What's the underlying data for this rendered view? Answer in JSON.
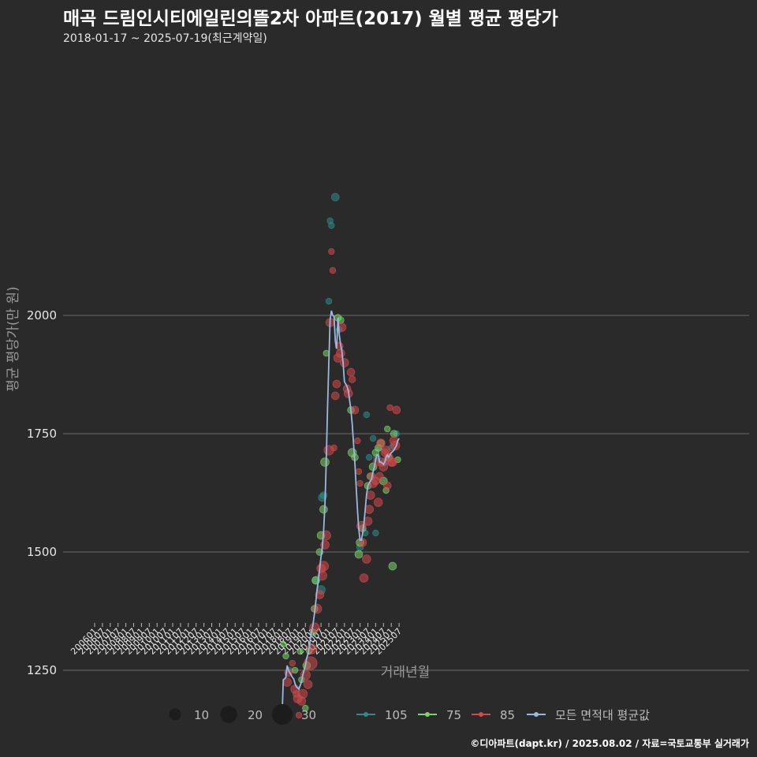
{
  "title": "매곡 드림인시티에일린의뜰2차 아파트(2017) 월별 평균 평당가",
  "subtitle": "2018-01-17 ~ 2025-07-19(최근계약일)",
  "caption": "©디아파트(dapt.kr) / 2025.08.02 / 자료=국토교통부 실거래가",
  "colors": {
    "background": "#2a2a2b",
    "grid": "#6b6b6b",
    "s105": "#2f8a8a",
    "s75": "#7dd46a",
    "s85": "#d4494c",
    "avg": "#9ab8e0"
  },
  "chart_data": {
    "type": "scatter",
    "xlabel": "거래년월",
    "ylabel": "평균 평당가(만 원)",
    "ylim": [
      1100,
      2300
    ],
    "yticks": [
      1250,
      1500,
      1750,
      2000
    ],
    "xticks": [
      "200601",
      "200607",
      "200701",
      "200707",
      "200801",
      "200807",
      "200901",
      "200907",
      "201001",
      "201007",
      "201101",
      "201107",
      "201201",
      "201207",
      "201301",
      "201307",
      "201401",
      "201407",
      "201501",
      "201507",
      "201601",
      "201607",
      "201701",
      "201707",
      "201801",
      "201807",
      "201901",
      "201907",
      "202001",
      "202007",
      "202101",
      "202107",
      "202201",
      "202207",
      "202301",
      "202307",
      "202401",
      "202407",
      "202501",
      "202507"
    ],
    "size_legend": {
      "values": [
        10,
        20,
        30
      ],
      "labels": [
        "10",
        "20",
        "30"
      ]
    },
    "series_legend": [
      "105",
      "75",
      "85",
      "모든 면적대 평균값"
    ],
    "series": [
      {
        "name": "105",
        "points": [
          [
            "2018-07",
            1250,
            3
          ],
          [
            "2020-03",
            1440,
            4
          ],
          [
            "2020-07",
            1420,
            6
          ],
          [
            "2020-08",
            1615,
            5
          ],
          [
            "2020-09",
            1620,
            4
          ],
          [
            "2021-01",
            2030,
            3
          ],
          [
            "2021-02",
            2200,
            3
          ],
          [
            "2021-03",
            2190,
            3
          ],
          [
            "2021-06",
            2250,
            5
          ],
          [
            "2021-09",
            1970,
            3
          ],
          [
            "2023-01",
            1510,
            4
          ],
          [
            "2023-05",
            1540,
            3
          ],
          [
            "2023-06",
            1790,
            3
          ],
          [
            "2023-08",
            1700,
            3
          ],
          [
            "2023-11",
            1740,
            3
          ],
          [
            "2024-01",
            1540,
            3
          ],
          [
            "2024-02",
            1700,
            4
          ],
          [
            "2024-04",
            1720,
            3
          ],
          [
            "2024-08",
            1690,
            4
          ],
          [
            "2025-01",
            1720,
            3
          ],
          [
            "2025-05",
            1750,
            3
          ]
        ]
      },
      {
        "name": "75",
        "points": [
          [
            "2018-02",
            1305,
            3
          ],
          [
            "2018-04",
            1280,
            3
          ],
          [
            "2018-11",
            1250,
            3
          ],
          [
            "2019-03",
            1290,
            3
          ],
          [
            "2019-04",
            1230,
            3
          ],
          [
            "2019-07",
            1170,
            3
          ],
          [
            "2019-08",
            1260,
            5
          ],
          [
            "2019-10",
            1290,
            3
          ],
          [
            "2020-01",
            1330,
            4
          ],
          [
            "2020-02",
            1380,
            4
          ],
          [
            "2020-03",
            1440,
            5
          ],
          [
            "2020-06",
            1500,
            4
          ],
          [
            "2020-07",
            1535,
            5
          ],
          [
            "2020-09",
            1590,
            5
          ],
          [
            "2020-10",
            1690,
            6
          ],
          [
            "2020-11",
            1920,
            3
          ],
          [
            "2021-08",
            1995,
            4
          ],
          [
            "2021-10",
            1990,
            4
          ],
          [
            "2022-06",
            1800,
            4
          ],
          [
            "2022-07",
            1710,
            6
          ],
          [
            "2022-09",
            1700,
            4
          ],
          [
            "2022-12",
            1495,
            5
          ],
          [
            "2023-01",
            1520,
            5
          ],
          [
            "2023-03",
            1550,
            4
          ],
          [
            "2023-07",
            1640,
            4
          ],
          [
            "2023-09",
            1660,
            4
          ],
          [
            "2023-11",
            1680,
            5
          ],
          [
            "2024-01",
            1710,
            4
          ],
          [
            "2024-03",
            1720,
            4
          ],
          [
            "2024-05",
            1730,
            4
          ],
          [
            "2024-07",
            1650,
            5
          ],
          [
            "2024-09",
            1630,
            3
          ],
          [
            "2024-10",
            1760,
            3
          ],
          [
            "2024-11",
            1700,
            4
          ],
          [
            "2025-02",
            1470,
            5
          ],
          [
            "2025-03",
            1750,
            4
          ],
          [
            "2025-06",
            1695,
            3
          ]
        ]
      },
      {
        "name": "85",
        "points": [
          [
            "2018-01",
            1150,
            3
          ],
          [
            "2018-05",
            1225,
            6
          ],
          [
            "2018-06",
            1245,
            5
          ],
          [
            "2018-09",
            1265,
            3
          ],
          [
            "2018-11",
            1210,
            6
          ],
          [
            "2018-12",
            1200,
            4
          ],
          [
            "2019-01",
            1190,
            6
          ],
          [
            "2019-02",
            1155,
            3
          ],
          [
            "2019-04",
            1185,
            6
          ],
          [
            "2019-05",
            1200,
            7
          ],
          [
            "2019-07",
            1240,
            8
          ],
          [
            "2019-09",
            1220,
            6
          ],
          [
            "2019-11",
            1265,
            14
          ],
          [
            "2019-12",
            1295,
            8
          ],
          [
            "2020-02",
            1340,
            8
          ],
          [
            "2020-04",
            1380,
            7
          ],
          [
            "2020-06",
            1410,
            6
          ],
          [
            "2020-07",
            1465,
            6
          ],
          [
            "2020-08",
            1450,
            7
          ],
          [
            "2020-09",
            1470,
            8
          ],
          [
            "2020-10",
            1515,
            6
          ],
          [
            "2020-11",
            1535,
            7
          ],
          [
            "2021-01",
            1715,
            8
          ],
          [
            "2021-02",
            1985,
            6
          ],
          [
            "2021-03",
            2135,
            3
          ],
          [
            "2021-04",
            2095,
            3
          ],
          [
            "2021-05",
            1720,
            3
          ],
          [
            "2021-06",
            1830,
            5
          ],
          [
            "2021-07",
            1855,
            5
          ],
          [
            "2021-08",
            1910,
            6
          ],
          [
            "2021-09",
            1935,
            5
          ],
          [
            "2021-10",
            1920,
            6
          ],
          [
            "2021-11",
            1975,
            6
          ],
          [
            "2022-01",
            1900,
            6
          ],
          [
            "2022-03",
            1845,
            5
          ],
          [
            "2022-04",
            1835,
            6
          ],
          [
            "2022-06",
            1880,
            5
          ],
          [
            "2022-07",
            1865,
            4
          ],
          [
            "2022-09",
            1800,
            5
          ],
          [
            "2022-11",
            1735,
            3
          ],
          [
            "2022-12",
            1670,
            3
          ],
          [
            "2023-01",
            1645,
            3
          ],
          [
            "2023-02",
            1555,
            7
          ],
          [
            "2023-03",
            1520,
            5
          ],
          [
            "2023-04",
            1445,
            6
          ],
          [
            "2023-06",
            1485,
            6
          ],
          [
            "2023-07",
            1565,
            6
          ],
          [
            "2023-08",
            1590,
            6
          ],
          [
            "2023-09",
            1620,
            6
          ],
          [
            "2023-10",
            1660,
            5
          ],
          [
            "2023-11",
            1645,
            6
          ],
          [
            "2024-01",
            1650,
            5
          ],
          [
            "2024-02",
            1690,
            5
          ],
          [
            "2024-03",
            1605,
            6
          ],
          [
            "2024-04",
            1660,
            5
          ],
          [
            "2024-05",
            1730,
            6
          ],
          [
            "2024-06",
            1690,
            6
          ],
          [
            "2024-07",
            1680,
            6
          ],
          [
            "2024-08",
            1710,
            5
          ],
          [
            "2024-09",
            1715,
            6
          ],
          [
            "2024-10",
            1640,
            5
          ],
          [
            "2024-11",
            1700,
            6
          ],
          [
            "2024-12",
            1805,
            3
          ],
          [
            "2025-01",
            1690,
            6
          ],
          [
            "2025-02",
            1690,
            6
          ],
          [
            "2025-03",
            1735,
            6
          ],
          [
            "2025-04",
            1725,
            7
          ],
          [
            "2025-05",
            1800,
            5
          ]
        ]
      },
      {
        "name": "모든 면적대 평균값",
        "line": [
          [
            "2018-01",
            1150
          ],
          [
            "2018-02",
            1230
          ],
          [
            "2018-03",
            1232
          ],
          [
            "2018-04",
            1235
          ],
          [
            "2018-05",
            1260
          ],
          [
            "2018-06",
            1250
          ],
          [
            "2018-07",
            1245
          ],
          [
            "2018-08",
            1240
          ],
          [
            "2018-09",
            1235
          ],
          [
            "2018-10",
            1232
          ],
          [
            "2018-11",
            1222
          ],
          [
            "2018-12",
            1215
          ],
          [
            "2019-01",
            1213
          ],
          [
            "2019-02",
            1210
          ],
          [
            "2019-03",
            1218
          ],
          [
            "2019-04",
            1225
          ],
          [
            "2019-05",
            1240
          ],
          [
            "2019-06",
            1250
          ],
          [
            "2019-07",
            1260
          ],
          [
            "2019-08",
            1275
          ],
          [
            "2019-09",
            1285
          ],
          [
            "2019-10",
            1300
          ],
          [
            "2019-11",
            1320
          ],
          [
            "2019-12",
            1335
          ],
          [
            "2020-01",
            1350
          ],
          [
            "2020-02",
            1370
          ],
          [
            "2020-03",
            1395
          ],
          [
            "2020-04",
            1420
          ],
          [
            "2020-05",
            1440
          ],
          [
            "2020-06",
            1465
          ],
          [
            "2020-07",
            1490
          ],
          [
            "2020-08",
            1510
          ],
          [
            "2020-09",
            1545
          ],
          [
            "2020-10",
            1600
          ],
          [
            "2020-11",
            1690
          ],
          [
            "2020-12",
            1800
          ],
          [
            "2021-01",
            1900
          ],
          [
            "2021-02",
            1990
          ],
          [
            "2021-03",
            2010
          ],
          [
            "2021-04",
            2000
          ],
          [
            "2021-05",
            1998
          ],
          [
            "2021-06",
            1945
          ],
          [
            "2021-07",
            1930
          ],
          [
            "2021-08",
            1995
          ],
          [
            "2021-09",
            1960
          ],
          [
            "2021-10",
            1940
          ],
          [
            "2021-11",
            1925
          ],
          [
            "2021-12",
            1900
          ],
          [
            "2022-01",
            1860
          ],
          [
            "2022-02",
            1855
          ],
          [
            "2022-03",
            1850
          ],
          [
            "2022-04",
            1840
          ],
          [
            "2022-05",
            1820
          ],
          [
            "2022-06",
            1800
          ],
          [
            "2022-07",
            1770
          ],
          [
            "2022-08",
            1730
          ],
          [
            "2022-09",
            1690
          ],
          [
            "2022-10",
            1640
          ],
          [
            "2022-11",
            1590
          ],
          [
            "2022-12",
            1550
          ],
          [
            "2023-01",
            1525
          ],
          [
            "2023-02",
            1525
          ],
          [
            "2023-03",
            1540
          ],
          [
            "2023-04",
            1560
          ],
          [
            "2023-05",
            1590
          ],
          [
            "2023-06",
            1620
          ],
          [
            "2023-07",
            1640
          ],
          [
            "2023-08",
            1645
          ],
          [
            "2023-09",
            1650
          ],
          [
            "2023-10",
            1655
          ],
          [
            "2023-11",
            1670
          ],
          [
            "2023-12",
            1680
          ],
          [
            "2024-01",
            1695
          ],
          [
            "2024-02",
            1705
          ],
          [
            "2024-03",
            1705
          ],
          [
            "2024-04",
            1690
          ],
          [
            "2024-05",
            1690
          ],
          [
            "2024-06",
            1688
          ],
          [
            "2024-07",
            1685
          ],
          [
            "2024-08",
            1690
          ],
          [
            "2024-09",
            1700
          ],
          [
            "2024-10",
            1705
          ],
          [
            "2024-11",
            1700
          ],
          [
            "2024-12",
            1705
          ],
          [
            "2025-01",
            1710
          ],
          [
            "2025-02",
            1712
          ],
          [
            "2025-03",
            1715
          ],
          [
            "2025-04",
            1720
          ],
          [
            "2025-05",
            1725
          ],
          [
            "2025-06",
            1735
          ],
          [
            "2025-07",
            1740
          ]
        ]
      }
    ]
  }
}
